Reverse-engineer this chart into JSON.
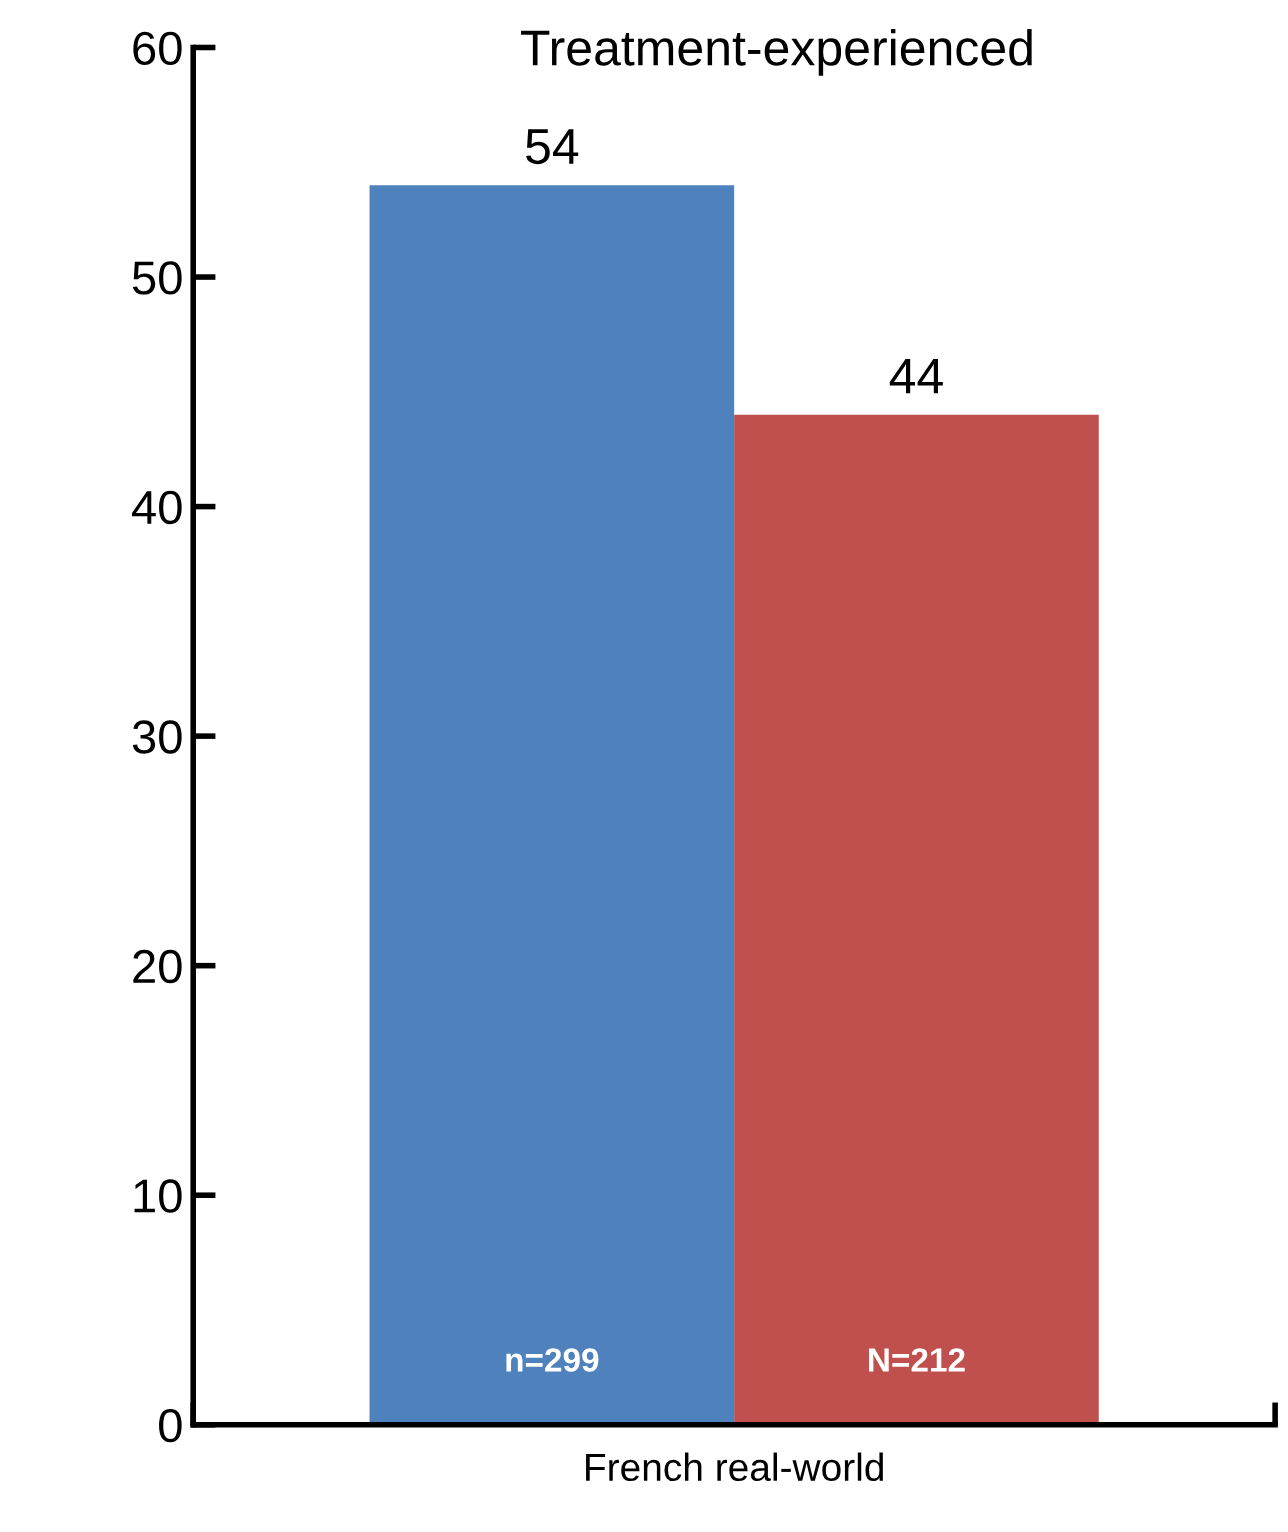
{
  "chart_data": {
    "type": "bar",
    "title": "Treatment-experienced",
    "categories": [
      "French real-world"
    ],
    "series": [
      {
        "color": "#4f81bd",
        "values": [
          54
        ]
      },
      {
        "color": "#c0504d",
        "values": [
          44
        ]
      }
    ],
    "annotations": [
      "n=299",
      "N=212"
    ],
    "ylim": [
      0,
      60
    ],
    "yticks": [
      0,
      10,
      20,
      30,
      40,
      50,
      60
    ],
    "data_labels": true,
    "grid": false,
    "legend": false
  }
}
